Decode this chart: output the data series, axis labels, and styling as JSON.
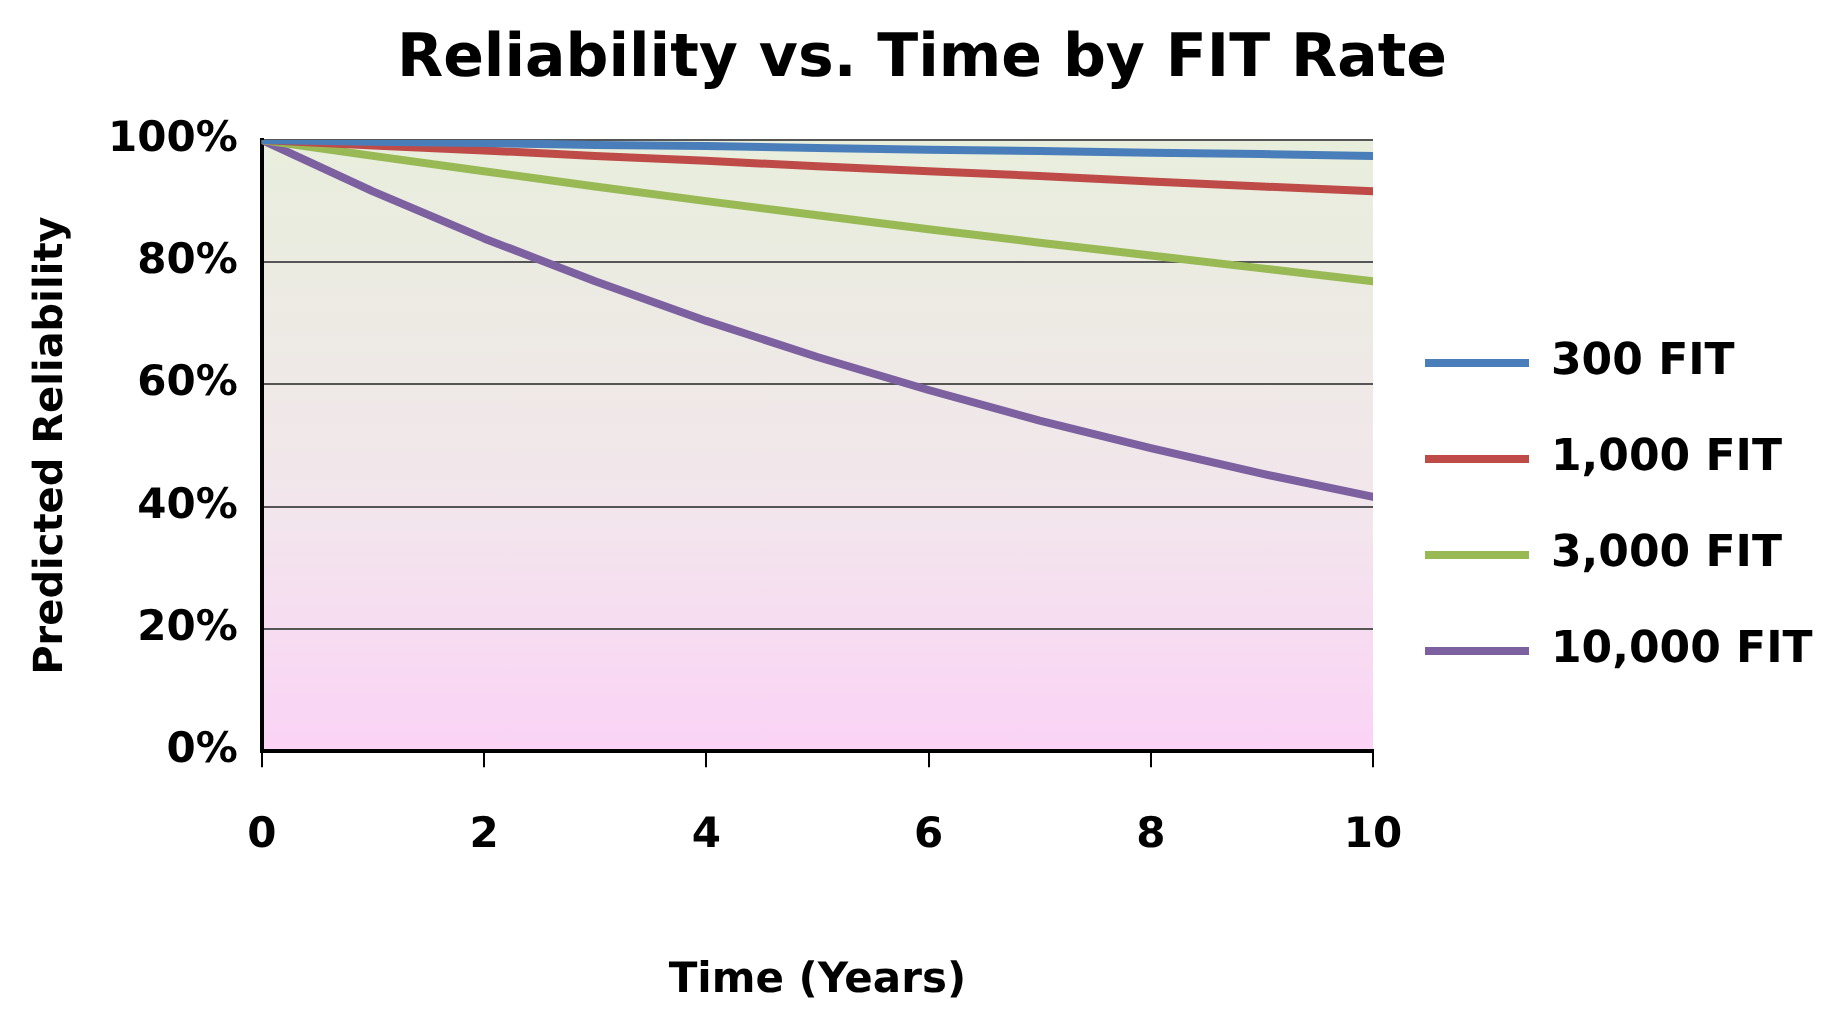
{
  "chart_data": {
    "type": "line",
    "title": "Reliability vs. Time by FIT Rate",
    "xlabel": "Time (Years)",
    "ylabel": "Predicted Reliability",
    "x": [
      0,
      1,
      2,
      3,
      4,
      5,
      6,
      7,
      8,
      9,
      10
    ],
    "series": [
      {
        "name": "300 FIT",
        "color": "#4a7ebb",
        "values": [
          100,
          99.7,
          99.5,
          99.2,
          99.0,
          98.7,
          98.4,
          98.2,
          97.9,
          97.7,
          97.4
        ]
      },
      {
        "name": "1,000 FIT",
        "color": "#be4b48",
        "values": [
          100,
          99.1,
          98.3,
          97.4,
          96.6,
          95.7,
          94.9,
          94.1,
          93.2,
          92.4,
          91.6
        ]
      },
      {
        "name": "3,000 FIT",
        "color": "#98b954",
        "values": [
          100,
          97.4,
          94.9,
          92.4,
          90.0,
          87.7,
          85.4,
          83.2,
          81.1,
          79.0,
          76.9
        ]
      },
      {
        "name": "10,000 FIT",
        "color": "#7d60a0",
        "values": [
          100,
          91.6,
          83.9,
          76.9,
          70.4,
          64.5,
          59.1,
          54.1,
          49.6,
          45.4,
          41.6
        ]
      }
    ],
    "xlim": [
      0,
      10
    ],
    "xticks": [
      0,
      2,
      4,
      6,
      8,
      10
    ],
    "ylim": [
      0,
      100
    ],
    "yticks": [
      {
        "value": 0,
        "label": "0%"
      },
      {
        "value": 20,
        "label": "20%"
      },
      {
        "value": 40,
        "label": "40%"
      },
      {
        "value": 60,
        "label": "60%"
      },
      {
        "value": 80,
        "label": "80%"
      },
      {
        "value": 100,
        "label": "100%"
      }
    ],
    "grid": "y",
    "legend": "right",
    "marker": "none",
    "line_style": "solid"
  }
}
